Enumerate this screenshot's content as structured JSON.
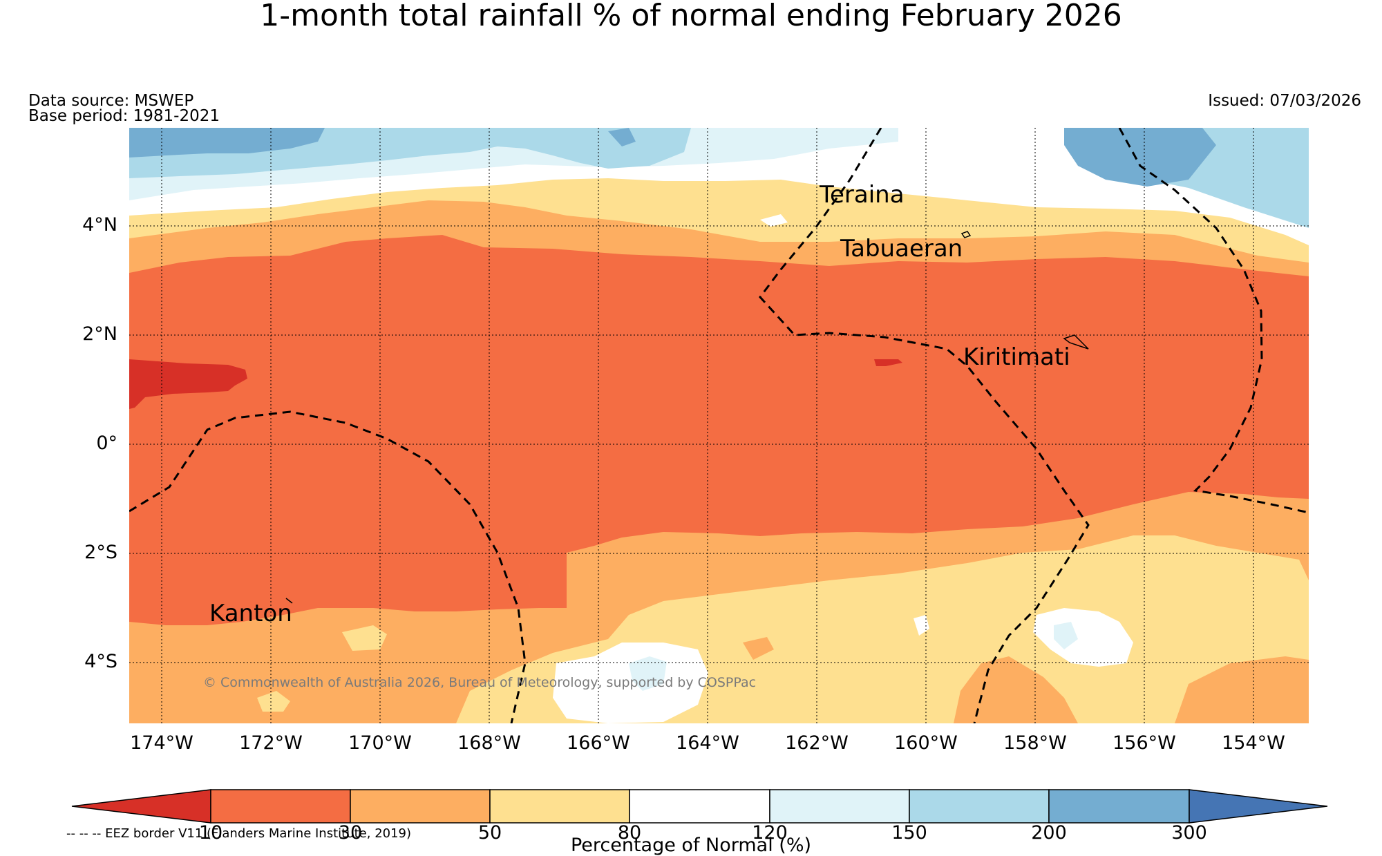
{
  "title": "1-month total rainfall % of normal ending February 2026",
  "data_source": "Data source: MSWEP",
  "base_period": "Base period: 1981-2021",
  "issued": "Issued: 07/03/2026",
  "lat_labels": [
    "4°N",
    "2°N",
    "0°",
    "2°S",
    "4°S"
  ],
  "lon_labels": [
    "174°W",
    "172°W",
    "170°W",
    "168°W",
    "166°W",
    "164°W",
    "162°W",
    "160°W",
    "158°W",
    "156°W",
    "154°W"
  ],
  "places": {
    "teraina": "Teraina",
    "tabuaeran": "Tabuaeran",
    "kiritimati": "Kiritimati",
    "kanton": "Kanton"
  },
  "copyright": "© Commonwealth of Australia 2026, Bureau of Meteorology, supported by COSPPac",
  "eez_legend": "-- -- -- EEZ border V11 (Flanders Marine Institute, 2019)",
  "colorbar": {
    "ticks": [
      "10",
      "30",
      "50",
      "80",
      "120",
      "150",
      "200",
      "300"
    ],
    "title": "Percentage of Normal (%)",
    "colors": {
      "lt10": "#d73027",
      "c10_30": "#f46d43",
      "c30_50": "#fdae61",
      "c50_80": "#fee090",
      "c80_120": "#ffffff",
      "c120_150": "#e0f3f8",
      "c150_200": "#abd9e9",
      "c200_300": "#74add1",
      "gt300": "#4575b4"
    }
  }
}
